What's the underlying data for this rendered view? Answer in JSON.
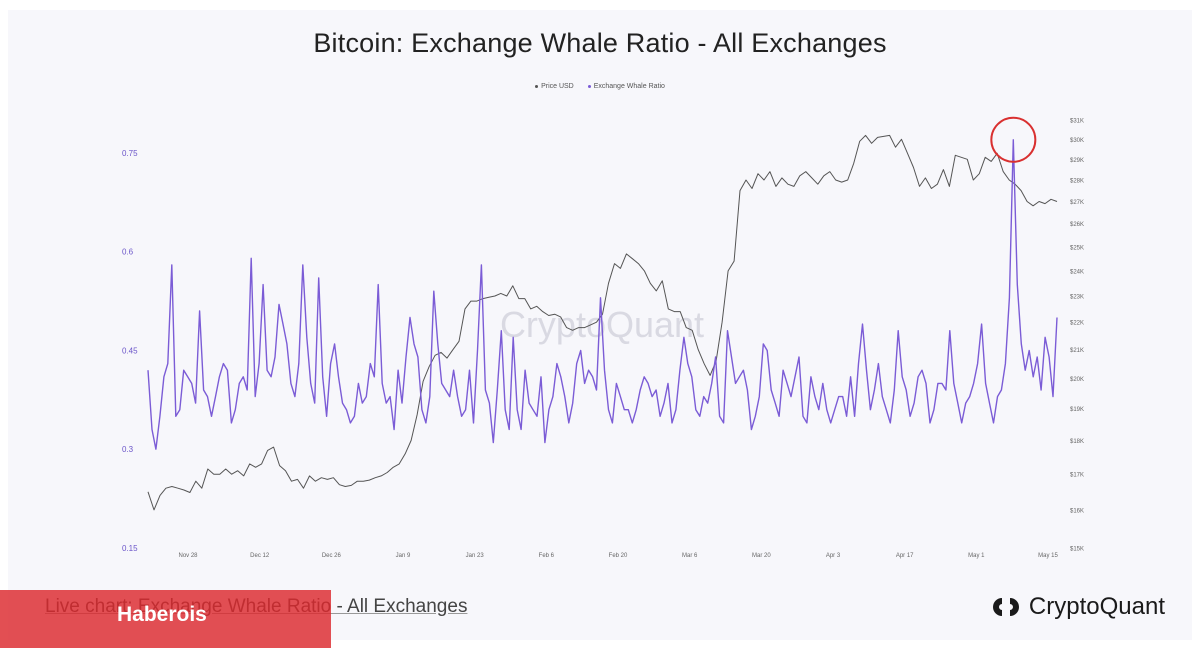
{
  "title": "Bitcoin: Exchange Whale Ratio - All Exchanges",
  "legend": [
    {
      "label": "Price USD",
      "color": "#555555"
    },
    {
      "label": "Exchange Whale Ratio",
      "color": "#7b5cd6"
    }
  ],
  "watermark_text": "CryptoQuant",
  "footer": {
    "link_text": "Live chart: Exchange Whale Ratio - All Exchanges",
    "overlay_text": "Haberois",
    "brand": "CryptoQuant"
  },
  "chart_data": {
    "type": "line",
    "title": "Bitcoin: Exchange Whale Ratio - All Exchanges",
    "x_ticks": [
      "Nov 28",
      "Dec 12",
      "Dec 26",
      "Jan 9",
      "Jan 23",
      "Feb 6",
      "Feb 20",
      "Mar 6",
      "Mar 20",
      "Apr 3",
      "Apr 17",
      "May 1",
      "May 15"
    ],
    "y_left": {
      "ticks": [
        "0.15",
        "0.3",
        "0.45",
        "0.6",
        "0.75"
      ],
      "range": [
        0.15,
        0.8
      ]
    },
    "y_right": {
      "ticks": [
        "$15K",
        "$16K",
        "$17K",
        "$18K",
        "$19K",
        "$20K",
        "$21K",
        "$22K",
        "$23K",
        "$24K",
        "$25K",
        "$26K",
        "$27K",
        "$28K",
        "$29K",
        "$30K",
        "$31K"
      ],
      "range": [
        15000,
        31000
      ],
      "scale": "log"
    },
    "series": [
      {
        "name": "Price USD",
        "axis": "right",
        "color": "#555555",
        "values": [
          16500,
          16000,
          16400,
          16600,
          16650,
          16600,
          16550,
          16480,
          16800,
          16600,
          17150,
          17000,
          17000,
          17150,
          17000,
          17100,
          16950,
          17300,
          17200,
          17300,
          17700,
          17800,
          17250,
          17100,
          16800,
          16850,
          16600,
          16950,
          16800,
          16900,
          16850,
          16900,
          16700,
          16650,
          16680,
          16800,
          16800,
          16830,
          16900,
          16950,
          17050,
          17200,
          17300,
          17600,
          18000,
          18800,
          19900,
          20400,
          20800,
          20900,
          20700,
          21000,
          21300,
          22500,
          22800,
          22800,
          22900,
          22950,
          23000,
          23100,
          23000,
          23400,
          22900,
          22900,
          22500,
          22600,
          22400,
          22250,
          22300,
          22200,
          21800,
          21700,
          21800,
          21800,
          21900,
          22000,
          22300,
          23500,
          24300,
          24100,
          24700,
          24500,
          24300,
          24000,
          23500,
          23200,
          23600,
          22500,
          22400,
          22400,
          21800,
          21700,
          21000,
          20500,
          20100,
          20600,
          22000,
          24000,
          24400,
          27500,
          28000,
          27600,
          28300,
          28000,
          28400,
          27700,
          28100,
          27800,
          27700,
          28200,
          28400,
          28100,
          27800,
          28200,
          28400,
          28000,
          27900,
          28000,
          28800,
          29900,
          30200,
          29800,
          30100,
          30150,
          30200,
          29600,
          30000,
          29300,
          28600,
          27700,
          28100,
          27600,
          27800,
          28500,
          27700,
          29200,
          29100,
          29000,
          28000,
          28300,
          29100,
          28900,
          29300,
          28400,
          28000,
          27800,
          27500,
          27000,
          26800,
          27000,
          26900,
          27100,
          27000
        ]
      },
      {
        "name": "Exchange Whale Ratio",
        "axis": "left",
        "color": "#7b5cd6",
        "values": [
          0.42,
          0.33,
          0.3,
          0.35,
          0.41,
          0.43,
          0.58,
          0.35,
          0.36,
          0.42,
          0.41,
          0.4,
          0.37,
          0.51,
          0.39,
          0.38,
          0.35,
          0.38,
          0.41,
          0.43,
          0.42,
          0.34,
          0.36,
          0.4,
          0.41,
          0.39,
          0.59,
          0.38,
          0.43,
          0.55,
          0.42,
          0.41,
          0.44,
          0.52,
          0.49,
          0.46,
          0.4,
          0.38,
          0.43,
          0.58,
          0.47,
          0.4,
          0.37,
          0.56,
          0.41,
          0.35,
          0.43,
          0.46,
          0.41,
          0.37,
          0.36,
          0.34,
          0.35,
          0.4,
          0.37,
          0.38,
          0.43,
          0.41,
          0.55,
          0.4,
          0.37,
          0.38,
          0.33,
          0.42,
          0.37,
          0.44,
          0.5,
          0.46,
          0.44,
          0.36,
          0.34,
          0.38,
          0.54,
          0.46,
          0.4,
          0.39,
          0.38,
          0.42,
          0.38,
          0.35,
          0.36,
          0.42,
          0.34,
          0.45,
          0.58,
          0.39,
          0.37,
          0.31,
          0.39,
          0.48,
          0.36,
          0.33,
          0.47,
          0.36,
          0.33,
          0.42,
          0.37,
          0.36,
          0.35,
          0.41,
          0.31,
          0.36,
          0.38,
          0.43,
          0.41,
          0.38,
          0.34,
          0.37,
          0.43,
          0.45,
          0.4,
          0.42,
          0.41,
          0.39,
          0.53,
          0.42,
          0.36,
          0.34,
          0.4,
          0.38,
          0.36,
          0.36,
          0.34,
          0.36,
          0.39,
          0.41,
          0.4,
          0.38,
          0.39,
          0.35,
          0.37,
          0.4,
          0.34,
          0.36,
          0.42,
          0.47,
          0.43,
          0.41,
          0.36,
          0.35,
          0.38,
          0.37,
          0.4,
          0.44,
          0.35,
          0.34,
          0.48,
          0.44,
          0.4,
          0.41,
          0.42,
          0.39,
          0.33,
          0.35,
          0.38,
          0.46,
          0.45,
          0.39,
          0.37,
          0.35,
          0.42,
          0.4,
          0.38,
          0.41,
          0.44,
          0.35,
          0.34,
          0.41,
          0.38,
          0.36,
          0.4,
          0.36,
          0.34,
          0.36,
          0.38,
          0.38,
          0.35,
          0.41,
          0.35,
          0.43,
          0.49,
          0.42,
          0.36,
          0.39,
          0.43,
          0.38,
          0.36,
          0.34,
          0.39,
          0.48,
          0.41,
          0.39,
          0.35,
          0.37,
          0.41,
          0.42,
          0.4,
          0.34,
          0.36,
          0.4,
          0.4,
          0.39,
          0.48,
          0.4,
          0.37,
          0.34,
          0.37,
          0.38,
          0.4,
          0.43,
          0.49,
          0.4,
          0.37,
          0.34,
          0.38,
          0.39,
          0.43,
          0.53,
          0.77,
          0.55,
          0.46,
          0.42,
          0.45,
          0.41,
          0.44,
          0.39,
          0.47,
          0.44,
          0.38,
          0.5
        ]
      }
    ],
    "annotation": {
      "type": "circle",
      "color": "#d93030",
      "near": "May 8 peak"
    }
  }
}
